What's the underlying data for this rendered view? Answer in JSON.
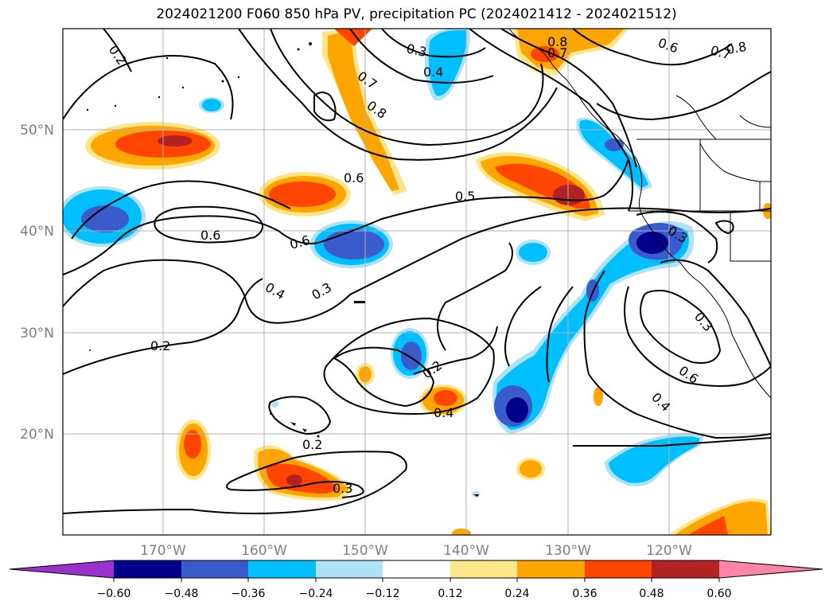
{
  "map": {
    "title": "2024021200 F060 850 hPa PV, precipitation PC (2024021412 - 2024021512)",
    "lat_ticks": [
      "50°N",
      "40°N",
      "30°N",
      "20°N"
    ],
    "lon_ticks": [
      "170°W",
      "160°W",
      "150°W",
      "140°W",
      "130°W",
      "120°W"
    ],
    "contour_labels": [
      "0.2",
      "0.3",
      "0.4",
      "0.7",
      "0.8",
      "0.8",
      "0.7",
      "0.6",
      "0.7",
      "0.8",
      "0.6",
      "0.5",
      "0.6",
      "0.6",
      "0.3",
      "0.4",
      "0.3",
      "0.2",
      "0.2",
      "0.4",
      "0.2",
      "0.3",
      "0.6",
      "0.4",
      "0.3"
    ],
    "colorbar": {
      "tick_labels": [
        "−0.60",
        "−0.48",
        "−0.36",
        "−0.24",
        "−0.12",
        "0.12",
        "0.24",
        "0.36",
        "0.48",
        "0.60"
      ],
      "colors": [
        "#9932cc",
        "#00008b",
        "#3a5bcc",
        "#00bfff",
        "#aee2f8",
        "#ffffff",
        "#fde68a",
        "#ffa500",
        "#ff4500",
        "#b22222",
        "#ff85a8"
      ]
    },
    "colors": {
      "contour": "#000000",
      "grid": "#b0b0b0",
      "tick_text": "#7f7f7f"
    }
  }
}
